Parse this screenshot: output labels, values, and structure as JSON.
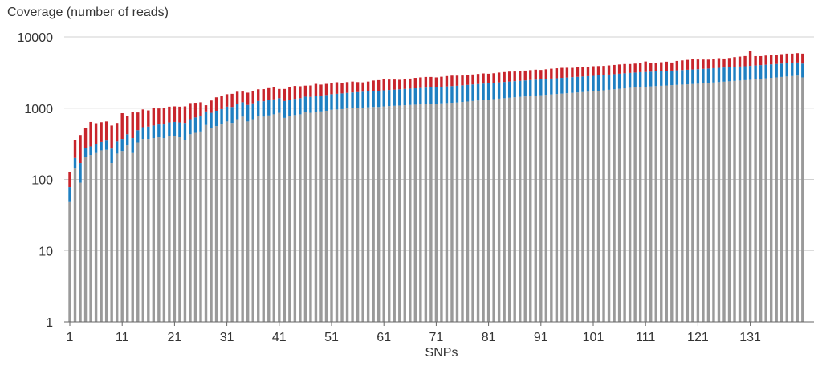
{
  "chart_data": {
    "type": "bar",
    "stacked": true,
    "title": "",
    "ylabel": "Coverage (number of reads)",
    "xlabel": "SNPs",
    "yscale": "log",
    "ylim": [
      1,
      10000
    ],
    "yticks": [
      1,
      10,
      100,
      1000,
      10000
    ],
    "ytick_labels": [
      "1",
      "10",
      "100",
      "1000",
      "10000"
    ],
    "xticks": [
      1,
      11,
      21,
      31,
      41,
      51,
      61,
      71,
      81,
      91,
      101,
      111,
      121,
      131
    ],
    "xtick_labels": [
      "1",
      "11",
      "21",
      "31",
      "41",
      "51",
      "61",
      "71",
      "81",
      "91",
      "101",
      "111",
      "121",
      "131"
    ],
    "grid": "horizontal",
    "legend": "none",
    "colors": {
      "grey": "#9a9a9a",
      "blue": "#1f7fc1",
      "red": "#c8252c",
      "grid": "#d0d0d0",
      "axis": "#666666"
    },
    "categories": [
      1,
      2,
      3,
      4,
      5,
      6,
      7,
      8,
      9,
      10,
      11,
      12,
      13,
      14,
      15,
      16,
      17,
      18,
      19,
      20,
      21,
      22,
      23,
      24,
      25,
      26,
      27,
      28,
      29,
      30,
      31,
      32,
      33,
      34,
      35,
      36,
      37,
      38,
      39,
      40,
      41,
      42,
      43,
      44,
      45,
      46,
      47,
      48,
      49,
      50,
      51,
      52,
      53,
      54,
      55,
      56,
      57,
      58,
      59,
      60,
      61,
      62,
      63,
      64,
      65,
      66,
      67,
      68,
      69,
      70,
      71,
      72,
      73,
      74,
      75,
      76,
      77,
      78,
      79,
      80,
      81,
      82,
      83,
      84,
      85,
      86,
      87,
      88,
      89,
      90,
      91,
      92,
      93,
      94,
      95,
      96,
      97,
      98,
      99,
      100,
      101,
      102,
      103,
      104,
      105,
      106,
      107,
      108,
      109,
      110,
      111,
      112,
      113,
      114,
      115,
      116,
      117,
      118,
      119,
      120,
      121,
      122,
      123,
      124,
      125,
      126,
      127,
      128,
      129,
      130,
      131,
      132,
      133,
      134,
      135,
      136,
      137,
      138,
      139,
      140,
      141
    ],
    "series": [
      {
        "color": "#9a9a9a",
        "values": [
          48,
          145,
          90,
          205,
          220,
          240,
          255,
          260,
          170,
          230,
          250,
          300,
          240,
          330,
          370,
          370,
          380,
          390,
          380,
          410,
          410,
          390,
          360,
          430,
          450,
          470,
          580,
          520,
          560,
          590,
          650,
          620,
          700,
          760,
          650,
          700,
          780,
          760,
          790,
          820,
          860,
          730,
          780,
          800,
          820,
          880,
          860,
          880,
          900,
          920,
          950,
          960,
          970,
          990,
          1000,
          1010,
          1020,
          1030,
          1040,
          1040,
          1060,
          1070,
          1080,
          1090,
          1100,
          1110,
          1120,
          1130,
          1140,
          1150,
          1160,
          1170,
          1180,
          1190,
          1200,
          1220,
          1240,
          1260,
          1280,
          1300,
          1320,
          1340,
          1360,
          1380,
          1400,
          1420,
          1440,
          1460,
          1480,
          1500,
          1520,
          1540,
          1560,
          1580,
          1600,
          1620,
          1640,
          1660,
          1680,
          1700,
          1720,
          1750,
          1780,
          1810,
          1840,
          1870,
          1900,
          1930,
          1960,
          1990,
          2000,
          2020,
          2040,
          2060,
          2080,
          2100,
          2120,
          2140,
          2160,
          2180,
          2200,
          2230,
          2260,
          2290,
          2320,
          2350,
          2380,
          2410,
          2440,
          2470,
          2500,
          2540,
          2580,
          2620,
          2660,
          2700,
          2740,
          2780,
          2820,
          2860,
          2700
        ]
      },
      {
        "color": "#1f7fc1",
        "values": [
          30,
          55,
          80,
          70,
          70,
          75,
          80,
          90,
          100,
          110,
          120,
          130,
          140,
          160,
          170,
          180,
          190,
          200,
          210,
          220,
          230,
          240,
          260,
          270,
          290,
          300,
          320,
          340,
          360,
          380,
          400,
          420,
          440,
          450,
          460,
          470,
          480,
          490,
          500,
          510,
          520,
          530,
          540,
          550,
          560,
          570,
          580,
          590,
          600,
          610,
          620,
          630,
          640,
          650,
          660,
          670,
          680,
          690,
          700,
          710,
          720,
          730,
          740,
          750,
          760,
          770,
          780,
          790,
          800,
          810,
          820,
          830,
          840,
          850,
          860,
          870,
          880,
          890,
          900,
          910,
          920,
          930,
          940,
          950,
          960,
          970,
          980,
          990,
          1000,
          1010,
          1020,
          1030,
          1040,
          1050,
          1060,
          1070,
          1080,
          1090,
          1100,
          1110,
          1120,
          1130,
          1140,
          1150,
          1160,
          1170,
          1180,
          1190,
          1200,
          1210,
          1220,
          1230,
          1240,
          1250,
          1260,
          1270,
          1280,
          1290,
          1300,
          1310,
          1320,
          1330,
          1340,
          1350,
          1360,
          1370,
          1380,
          1390,
          1400,
          1410,
          1420,
          1430,
          1440,
          1450,
          1460,
          1470,
          1480,
          1490,
          1500,
          1510,
          1520
        ]
      },
      {
        "color": "#c8252c",
        "values": [
          50,
          160,
          250,
          250,
          350,
          300,
          300,
          300,
          300,
          280,
          480,
          350,
          500,
          380,
          420,
          380,
          450,
          400,
          420,
          420,
          420,
          420,
          440,
          480,
          450,
          440,
          200,
          420,
          500,
          500,
          520,
          550,
          560,
          500,
          540,
          560,
          580,
          600,
          620,
          640,
          480,
          600,
          640,
          700,
          650,
          620,
          640,
          720,
          640,
          660,
          680,
          720,
          660,
          680,
          700,
          640,
          600,
          640,
          700,
          720,
          760,
          720,
          700,
          660,
          700,
          720,
          760,
          780,
          800,
          780,
          720,
          760,
          800,
          820,
          800,
          780,
          800,
          820,
          840,
          860,
          800,
          820,
          860,
          880,
          900,
          880,
          900,
          920,
          940,
          960,
          900,
          940,
          980,
          1000,
          1020,
          1000,
          960,
          980,
          1000,
          1020,
          1040,
          1020,
          1000,
          1020,
          1040,
          1060,
          1080,
          1040,
          1060,
          1100,
          1300,
          1000,
          1050,
          1100,
          1150,
          1000,
          1200,
          1250,
          1300,
          1350,
          1300,
          1250,
          1200,
          1300,
          1350,
          1250,
          1300,
          1400,
          1450,
          1500,
          2400,
          1400,
          1350,
          1400,
          1450,
          1450,
          1500,
          1550,
          1500,
          1550,
          1600
        ]
      }
    ]
  }
}
